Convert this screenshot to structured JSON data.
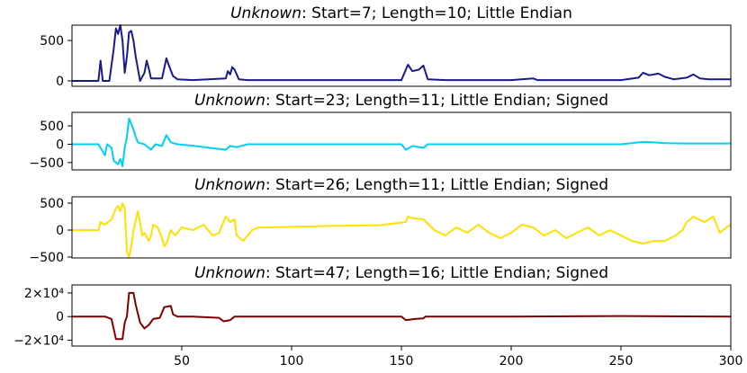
{
  "chart_data": [
    {
      "type": "line",
      "title_emphasis": "Unknown",
      "title": ": Start=7; Length=10; Little Endian",
      "color": "#1a1a8c",
      "xlim": [
        0,
        300
      ],
      "ylim": [
        -67,
        690
      ],
      "yticks": [
        0,
        500
      ],
      "x": [
        0,
        12,
        13,
        14,
        17,
        19,
        20,
        21,
        22,
        23,
        24,
        25,
        26,
        27,
        28,
        29,
        30,
        31,
        33,
        34,
        35,
        36,
        41,
        43,
        44,
        46,
        48,
        55,
        70,
        71,
        72,
        73,
        74,
        76,
        80,
        100,
        150,
        153,
        155,
        158,
        160,
        162,
        170,
        200,
        210,
        212,
        250,
        258,
        260,
        263,
        267,
        270,
        274,
        280,
        283,
        286,
        290,
        300
      ],
      "values": [
        0,
        0,
        250,
        0,
        0,
        400,
        650,
        580,
        690,
        500,
        100,
        300,
        600,
        620,
        500,
        300,
        150,
        0,
        100,
        250,
        150,
        30,
        30,
        280,
        200,
        60,
        20,
        10,
        30,
        120,
        80,
        170,
        140,
        20,
        10,
        10,
        10,
        200,
        120,
        140,
        190,
        20,
        10,
        10,
        30,
        10,
        10,
        40,
        100,
        70,
        90,
        50,
        20,
        40,
        80,
        30,
        20,
        20
      ]
    },
    {
      "type": "line",
      "title_emphasis": "Unknown",
      "title": ": Start=23; Length=11; Little Endian; Signed",
      "color": "#00d0f0",
      "xlim": [
        0,
        300
      ],
      "ylim": [
        -700,
        870
      ],
      "yticks": [
        500,
        0,
        {
          "value": -500,
          "label": "−500"
        }
      ],
      "x": [
        0,
        12,
        14,
        15,
        16,
        18,
        19,
        21,
        22,
        23,
        24,
        25,
        26,
        27,
        28,
        29,
        30,
        33,
        36,
        38,
        41,
        43,
        45,
        48,
        55,
        70,
        72,
        75,
        80,
        150,
        152,
        155,
        160,
        162,
        200,
        250,
        258,
        260,
        265,
        270,
        280,
        300
      ],
      "values": [
        0,
        0,
        -200,
        -300,
        0,
        -100,
        -450,
        -550,
        -400,
        -600,
        -100,
        200,
        700,
        550,
        400,
        200,
        50,
        0,
        -150,
        0,
        -50,
        250,
        50,
        0,
        -40,
        -150,
        -50,
        -80,
        0,
        0,
        -150,
        -50,
        -100,
        0,
        0,
        0,
        50,
        60,
        50,
        30,
        20,
        20
      ]
    },
    {
      "type": "line",
      "title_emphasis": "Unknown",
      "title": ": Start=26; Length=11; Little Endian; Signed",
      "color": "#ffe000",
      "xlim": [
        0,
        300
      ],
      "ylim": [
        -517,
        617
      ],
      "yticks": [
        500,
        0,
        {
          "value": -500,
          "label": "−500"
        }
      ],
      "x": [
        0,
        12,
        13,
        15,
        18,
        20,
        21,
        22,
        23,
        24,
        25,
        26,
        27,
        28,
        30,
        32,
        33,
        35,
        36,
        37,
        39,
        41,
        42,
        43,
        45,
        47,
        50,
        55,
        60,
        64,
        67,
        70,
        72,
        74,
        75,
        78,
        82,
        85,
        90,
        100,
        120,
        140,
        152,
        153,
        155,
        160,
        165,
        170,
        175,
        180,
        185,
        190,
        195,
        200,
        205,
        210,
        215,
        220,
        225,
        230,
        235,
        240,
        245,
        250,
        255,
        260,
        265,
        270,
        275,
        278,
        280,
        283,
        288,
        292,
        295,
        298,
        300
      ],
      "values": [
        0,
        0,
        150,
        100,
        200,
        400,
        450,
        350,
        500,
        400,
        -400,
        -500,
        -300,
        0,
        350,
        -100,
        -50,
        -200,
        -100,
        100,
        50,
        -150,
        -300,
        -250,
        0,
        -100,
        50,
        0,
        100,
        -100,
        -50,
        250,
        150,
        200,
        -100,
        -200,
        0,
        50,
        50,
        60,
        80,
        90,
        150,
        250,
        220,
        200,
        0,
        -100,
        50,
        -50,
        100,
        -50,
        -150,
        -50,
        100,
        50,
        -100,
        0,
        -150,
        -50,
        50,
        -100,
        0,
        -100,
        -200,
        -250,
        -200,
        -200,
        -100,
        0,
        150,
        250,
        150,
        250,
        -50,
        50,
        100
      ]
    },
    {
      "type": "line",
      "title_emphasis": "Unknown",
      "title": ": Start=47; Length=16; Little Endian; Signed",
      "color": "#800000",
      "xlim": [
        0,
        300
      ],
      "ylim": [
        -24900,
        26800
      ],
      "yticks": [
        {
          "value": 20000,
          "label": "2×10⁴"
        },
        0,
        {
          "value": -20000,
          "label": "−2×10⁴"
        }
      ],
      "xticks": [
        50,
        100,
        150,
        200,
        250,
        300
      ],
      "x": [
        0,
        15,
        18,
        20,
        23,
        24,
        25,
        26,
        28,
        29,
        31,
        33,
        35,
        37,
        40,
        42,
        45,
        46,
        48,
        55,
        67,
        69,
        72,
        74,
        150,
        152,
        156,
        160,
        161,
        200,
        250,
        300
      ],
      "values": [
        0,
        0,
        -2000,
        -19000,
        -19000,
        -5000,
        0,
        20000,
        20000,
        10000,
        -5000,
        -10000,
        -7000,
        -2000,
        -1000,
        8000,
        9000,
        2000,
        0,
        0,
        -1000,
        -4000,
        -3000,
        0,
        0,
        -3000,
        -2000,
        -1500,
        0,
        0,
        500,
        0
      ]
    }
  ]
}
